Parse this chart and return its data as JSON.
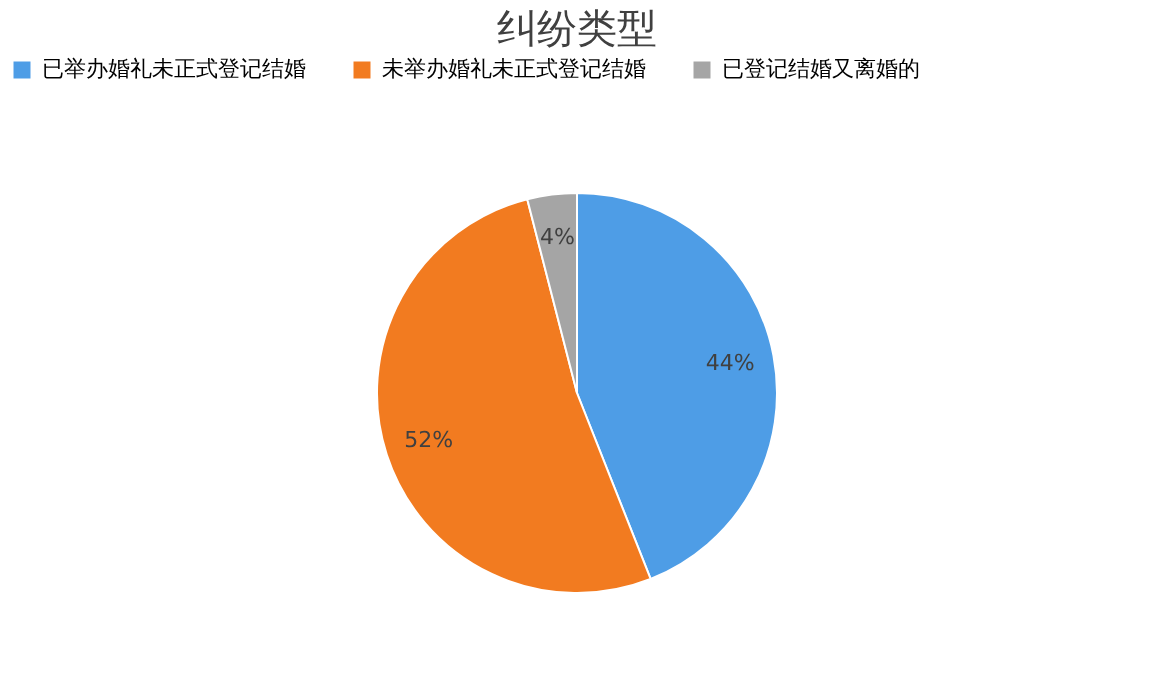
{
  "chart_data": {
    "type": "pie",
    "title": "纠纷类型",
    "categories": [
      "已举办婚礼未正式登记结婚",
      "未举办婚礼未正式登记结婚",
      "已登记结婚又离婚的"
    ],
    "values": [
      44,
      52,
      4
    ],
    "colors": [
      "#4e9de6",
      "#f27b20",
      "#a5a5a5"
    ],
    "value_labels": [
      "44%",
      "52%",
      "4%"
    ],
    "legend": "top"
  }
}
